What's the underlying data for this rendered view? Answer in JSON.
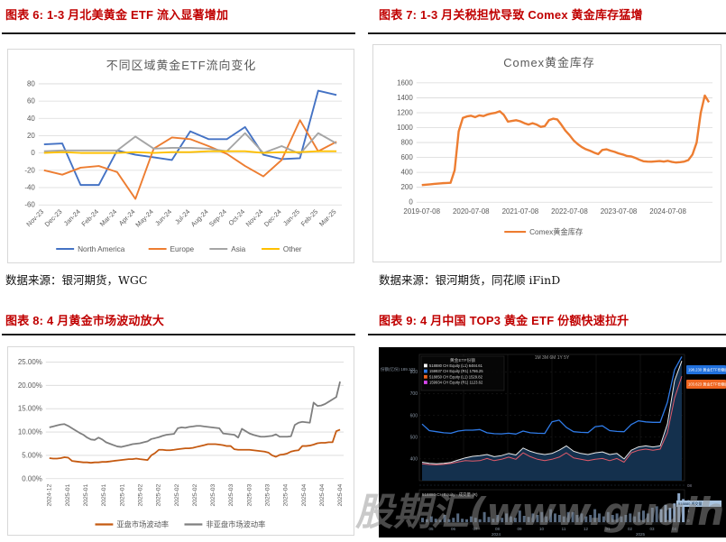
{
  "figures": {
    "fig6": {
      "title": "图表 6: 1-3 月北美黄金 ETF 流入显著增加"
    },
    "fig7": {
      "title": "图表 7: 1-3 月关税担忧导致 Comex 黄金库存猛增"
    },
    "fig8": {
      "title": "图表 8: 4 月黄金市场波动放大"
    },
    "fig9": {
      "title": "图表 9: 4 月中国 TOP3 黄金 ETF 份额快速拉升"
    }
  },
  "sources": {
    "left": "数据来源：银河期货，WGC",
    "right": "数据来源：银河期货，同花顺 iFinD"
  },
  "watermark": "股期汇(www.guqihui.cn)",
  "chart_data": [
    {
      "id": "regional-gold-etf-flows",
      "type": "line",
      "title": "不同区域黄金ETF流向变化",
      "categories": [
        "Nov-23",
        "Dec-23",
        "Jan-24",
        "Feb-24",
        "Mar-24",
        "Apr-24",
        "May-24",
        "Jun-24",
        "Jul-24",
        "Aug-24",
        "Sep-24",
        "Oct-24",
        "Nov-24",
        "Dec-24",
        "Jan-25",
        "Feb-25",
        "Mar-25"
      ],
      "series": [
        {
          "name": "North America",
          "color": "#4472C4",
          "values": [
            10,
            11,
            -37,
            -37,
            3,
            -2,
            -5,
            -8,
            25,
            16,
            16,
            30,
            -2,
            -7,
            -6,
            72,
            67
          ]
        },
        {
          "name": "Europe",
          "color": "#ED7D31",
          "values": [
            -20,
            -25,
            -17,
            -15,
            -22,
            -53,
            5,
            18,
            16,
            8,
            -1,
            -15,
            -27,
            -8,
            38,
            2,
            13
          ]
        },
        {
          "name": "Asia",
          "color": "#A5A5A5",
          "values": [
            2,
            3,
            3,
            3,
            3,
            19,
            5,
            6,
            6,
            5,
            2,
            23,
            0,
            8,
            -1,
            23,
            11
          ]
        },
        {
          "name": "Other",
          "color": "#FFC000",
          "values": [
            0,
            1,
            0,
            0,
            0,
            1,
            0,
            1,
            1,
            2,
            2,
            2,
            0,
            1,
            1,
            2,
            2
          ]
        }
      ],
      "ylim": [
        -60,
        80
      ],
      "ytick_step": 20,
      "grid": true,
      "legend_position": "bottom"
    },
    {
      "id": "comex-gold-inventory",
      "type": "line",
      "title": "Comex黄金库存",
      "x_tick_labels": [
        "2019-07-08",
        "2020-07-08",
        "2021-07-08",
        "2022-07-08",
        "2023-07-08",
        "2024-07-08"
      ],
      "x_tick_positions": [
        0,
        12,
        24,
        36,
        48,
        60
      ],
      "series": [
        {
          "name": "Comex黄金库存",
          "color": "#ED7D31",
          "values": [
            230,
            235,
            240,
            245,
            250,
            255,
            258,
            260,
            430,
            950,
            1130,
            1150,
            1160,
            1140,
            1165,
            1155,
            1175,
            1190,
            1200,
            1220,
            1170,
            1080,
            1090,
            1100,
            1085,
            1060,
            1040,
            1060,
            1040,
            1010,
            1020,
            1100,
            1120,
            1110,
            1040,
            960,
            900,
            830,
            780,
            740,
            710,
            690,
            665,
            645,
            700,
            710,
            690,
            675,
            655,
            640,
            620,
            615,
            595,
            570,
            550,
            545,
            543,
            547,
            552,
            545,
            555,
            540,
            532,
            537,
            545,
            565,
            640,
            800,
            1200,
            1430,
            1340
          ]
        }
      ],
      "ylim": [
        0,
        1600
      ],
      "ytick_step": 200,
      "grid": true,
      "legend_position": "bottom"
    },
    {
      "id": "gold-market-volatility",
      "type": "line",
      "title": "",
      "x_tick_labels": [
        "2024-12",
        "2025-01",
        "2025-01",
        "2025-01",
        "2025-01",
        "2025-02",
        "2025-02",
        "2025-02",
        "2025-02",
        "2025-03",
        "2025-03",
        "2025-03",
        "2025-03",
        "2025-04",
        "2025-04",
        "2025-04",
        "2025-04"
      ],
      "series": [
        {
          "name": "亚盘市场波动率",
          "color": "#C55A11",
          "values": [
            4.4,
            4.3,
            4.3,
            4.4,
            4.6,
            4.5,
            3.8,
            3.7,
            3.6,
            3.5,
            3.5,
            3.4,
            3.5,
            3.5,
            3.6,
            3.6,
            3.7,
            3.8,
            3.9,
            4.0,
            4.1,
            4.2,
            4.2,
            4.3,
            4.2,
            4.1,
            4.0,
            5.0,
            5.5,
            6.2,
            6.2,
            6.1,
            6.1,
            6.2,
            6.3,
            6.4,
            6.5,
            6.5,
            6.6,
            6.8,
            7.0,
            7.2,
            7.4,
            7.4,
            7.4,
            7.3,
            7.2,
            7.0,
            7.0,
            6.3,
            6.2,
            6.2,
            6.2,
            6.2,
            6.1,
            6.0,
            5.9,
            5.8,
            5.6,
            5.0,
            4.7,
            5.1,
            5.2,
            5.4,
            5.8,
            6.0,
            6.1,
            7.0,
            7.0,
            7.1,
            7.3,
            7.6,
            7.7,
            7.7,
            7.8,
            7.8,
            10.2,
            10.5
          ]
        },
        {
          "name": "非亚盘市场波动率",
          "color": "#7F7F7F",
          "values": [
            11.0,
            11.2,
            11.4,
            11.6,
            11.7,
            11.3,
            10.8,
            10.3,
            9.8,
            9.4,
            8.8,
            8.4,
            8.3,
            8.8,
            8.4,
            7.8,
            7.5,
            7.2,
            6.9,
            6.8,
            7.0,
            7.2,
            7.4,
            7.5,
            7.6,
            7.8,
            8.0,
            8.5,
            8.7,
            8.9,
            9.2,
            9.4,
            9.5,
            9.6,
            10.8,
            11.0,
            10.9,
            11.1,
            11.2,
            11.3,
            11.3,
            11.2,
            11.1,
            11.0,
            10.9,
            10.8,
            9.7,
            9.6,
            9.5,
            9.4,
            8.8,
            10.7,
            10.2,
            9.7,
            9.4,
            9.2,
            9.0,
            9.0,
            9.1,
            9.2,
            9.5,
            9.0,
            9.0,
            9.0,
            9.1,
            11.5,
            12.0,
            12.2,
            12.1,
            12.0,
            16.3,
            15.6,
            15.7,
            16.0,
            16.5,
            17.0,
            17.5,
            20.8
          ]
        }
      ],
      "ylim": [
        0,
        25
      ],
      "ytick_step": 5,
      "ytick_suffix": "%",
      "grid": true,
      "legend_position": "bottom"
    },
    {
      "id": "china-top3-gold-etf-terminal",
      "type": "line",
      "theme": "dark",
      "legend_header": "黄金ETF份额",
      "legend": [
        {
          "color": "#FFFFFF",
          "label": "518880 CH Equity (L1) 6484.61"
        },
        {
          "color": "#2F7BE8",
          "label": "159937 CH Equity (R1) 1786.25"
        },
        {
          "color": "#F0641E",
          "label": "518850 CH Equity (L1) 1529.82"
        },
        {
          "color": "#D946EF",
          "label": "159934 CH Equity (R1) 1123.62"
        }
      ],
      "range_buttons": "1M 3M 6M 1Y 5Y",
      "left_axis_labels": [
        "800",
        "700",
        "600",
        "500",
        "400"
      ],
      "right_tags": [
        {
          "color": "#2070DD",
          "label": "198.230 黄金ETF份额(右)"
        },
        {
          "color": "#EF6520",
          "label": "103.623 黄金ETF份额(右)"
        }
      ],
      "note": "份额(亿份) 189.102",
      "separator_label": "08",
      "series": [
        {
          "name": "etf-blue",
          "color": "#2F7BE8",
          "values": [
            560,
            530,
            525,
            520,
            518,
            528,
            532,
            532,
            535,
            520,
            516,
            515,
            518,
            514,
            528,
            520,
            518,
            517,
            570,
            578,
            545,
            525,
            522,
            521,
            548,
            552,
            530,
            526,
            525,
            558,
            575,
            570,
            568,
            568,
            660,
            810,
            870
          ]
        },
        {
          "name": "etf-white",
          "color": "#E8E8E8",
          "fill": "#14304D",
          "values": [
            385,
            380,
            378,
            380,
            384,
            395,
            405,
            412,
            415,
            420,
            410,
            415,
            425,
            418,
            450,
            435,
            425,
            420,
            425,
            440,
            460,
            435,
            425,
            420,
            428,
            432,
            420,
            425,
            400,
            440,
            455,
            460,
            455,
            460,
            560,
            760,
            850
          ]
        },
        {
          "name": "etf-red",
          "color": "#E05A6A",
          "values": [
            378,
            374,
            373,
            375,
            379,
            386,
            392,
            390,
            392,
            402,
            392,
            398,
            408,
            398,
            428,
            410,
            398,
            392,
            398,
            408,
            428,
            405,
            398,
            392,
            398,
            402,
            392,
            402,
            385,
            428,
            440,
            445,
            440,
            445,
            520,
            680,
            780
          ]
        }
      ],
      "volume_label": "518880 CH Equity - 成交量 (R)",
      "volume_tag": "518880 成交量",
      "volume_axis_labels": [
        "2",
        "1",
        "0"
      ],
      "volume": [
        0.15,
        0.1,
        0.2,
        0.12,
        0.08,
        0.25,
        0.1,
        0.15,
        0.3,
        0.12,
        0.1,
        0.2,
        0.15,
        0.1,
        0.35,
        0.18,
        0.12,
        0.25,
        0.15,
        0.3,
        0.2,
        0.15,
        0.4,
        0.22,
        0.18,
        0.3,
        0.25,
        0.35,
        0.2,
        0.45,
        0.3,
        0.25,
        0.2,
        0.35,
        0.35,
        0.25,
        0.3,
        0.2,
        0.25,
        0.45,
        0.3,
        0.2,
        0.35,
        0.25,
        0.3,
        0.2,
        0.25,
        0.3,
        0.2,
        0.35,
        0.4,
        0.3,
        0.5,
        0.55,
        0.45,
        0.6,
        0.5,
        0.65,
        1.0,
        0.8
      ],
      "x_axis_labels": [
        "05",
        "06",
        "07",
        "08",
        "09",
        "10",
        "11",
        "12",
        "01",
        "02",
        "03",
        "04"
      ],
      "x_year_labels": [
        "2024",
        "2025"
      ]
    }
  ]
}
